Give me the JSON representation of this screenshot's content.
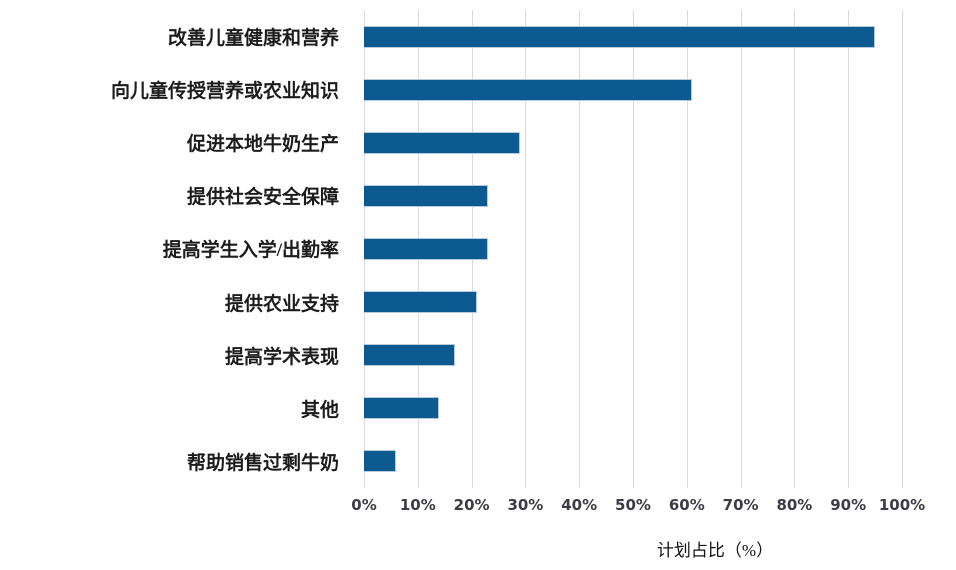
{
  "chart_data": {
    "type": "bar",
    "orientation": "horizontal",
    "categories": [
      "改善儿童健康和营养",
      "向儿童传授营养或农业知识",
      "促进本地牛奶生产",
      "提供社会安全保障",
      "提高学生入学/出勤率",
      "提供农业支持",
      "提高学术表现",
      "其他",
      "帮助销售过剩牛奶"
    ],
    "values": [
      95,
      61,
      29,
      23,
      23,
      21,
      17,
      14,
      6
    ],
    "unit": "%",
    "xlabel": "计划占比（%）",
    "xlim": [
      0,
      100
    ],
    "x_tick_step": 10,
    "x_ticks": [
      "0%",
      "10%",
      "20%",
      "30%",
      "40%",
      "50%",
      "60%",
      "70%",
      "80%",
      "90%",
      "100%"
    ],
    "grid": "vertical",
    "legend": "none",
    "bar_color": "#0D5A91",
    "bar_border_color": "#b9c9dc",
    "gridline_color": "#dadade",
    "label_color": "#1c1c1c",
    "tick_color": "#3c3c46"
  }
}
